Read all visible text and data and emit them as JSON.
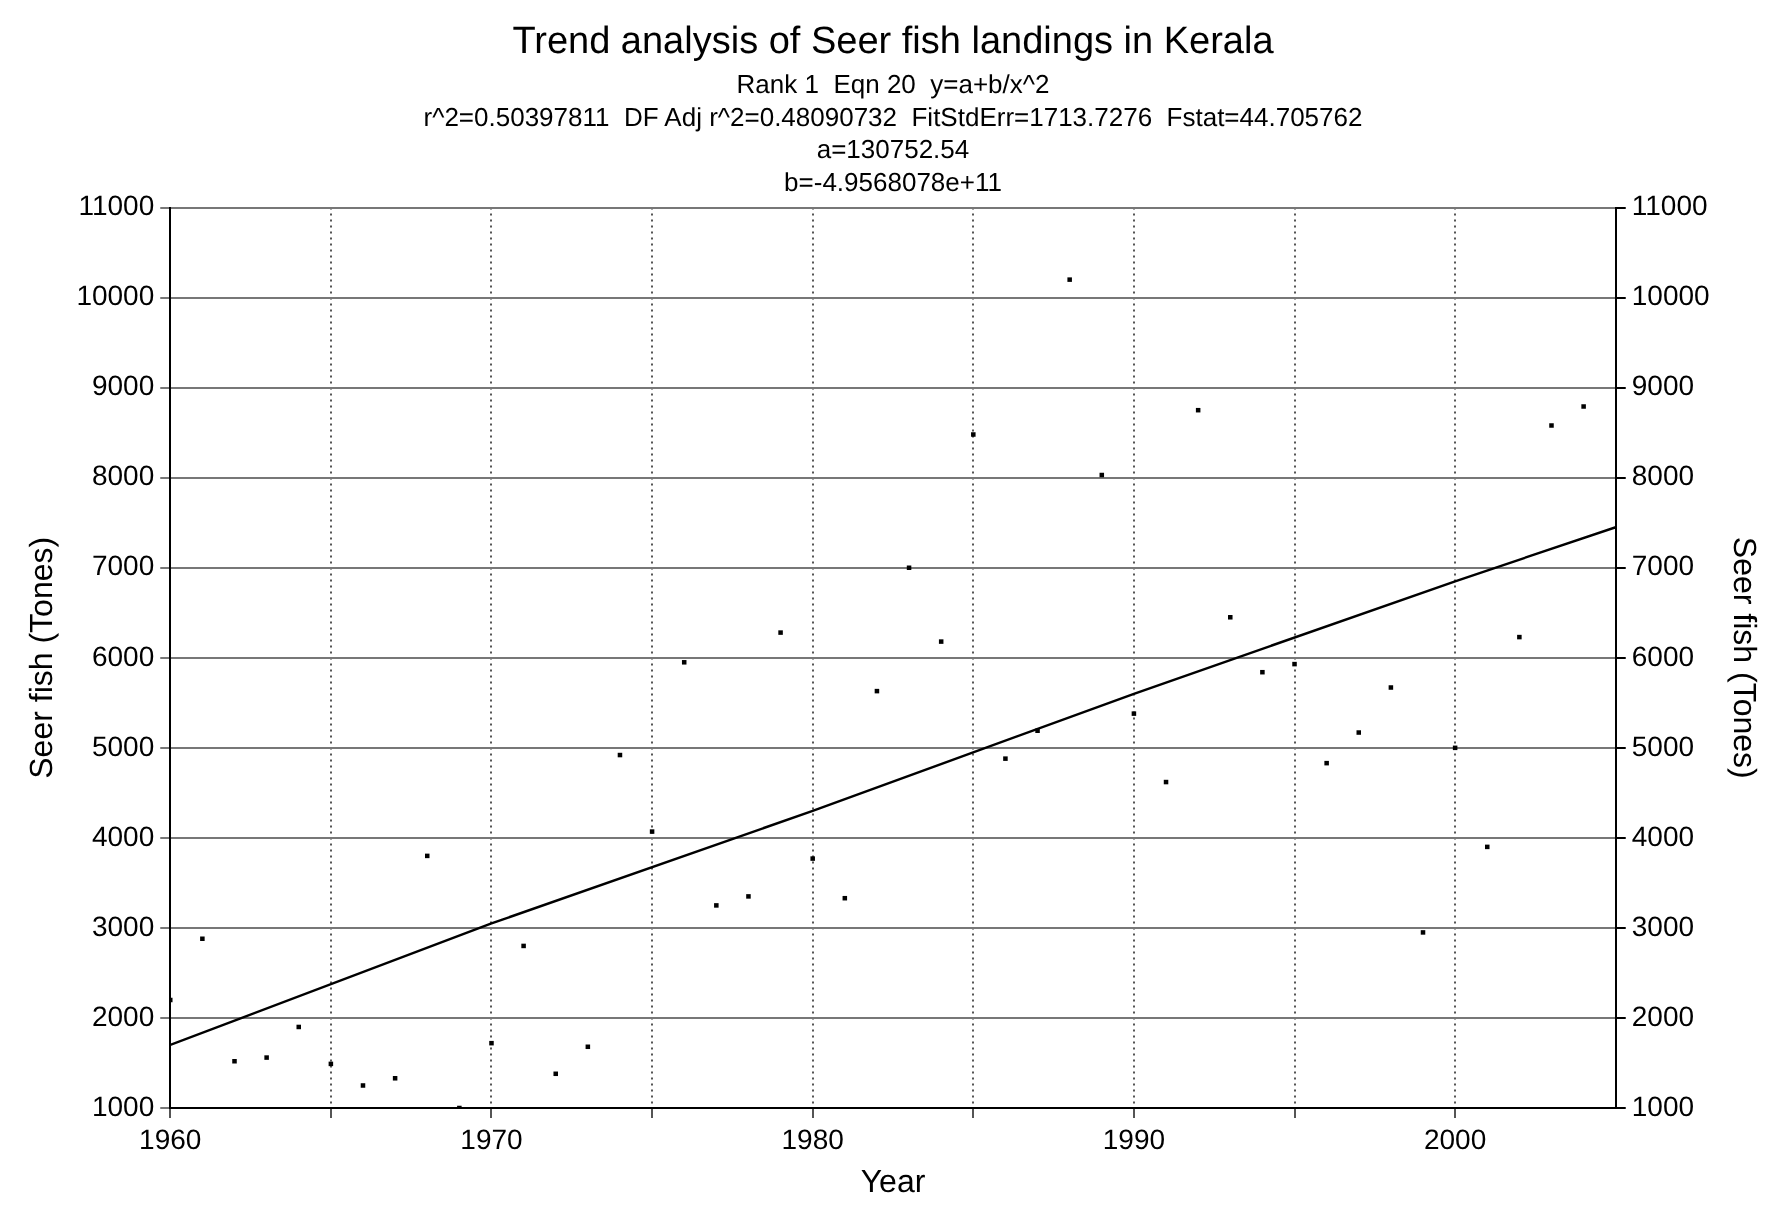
{
  "chart_data": {
    "type": "scatter",
    "title": "Trend analysis of Seer fish landings in Kerala",
    "subtitle": "Rank 1  Eqn 20  y=a+b/x^2",
    "annotations": [
      "r^2=0.50397811  DF Adj r^2=0.48090732  FitStdErr=1713.7276  Fstat=44.705762",
      "a=130752.54",
      "b=-4.9568078e+11"
    ],
    "xlabel": "Year",
    "ylabel": "Seer fish (Tones)",
    "y2label": "Seer fish (Tones)",
    "x": [
      1960,
      1961,
      1962,
      1963,
      1964,
      1965,
      1966,
      1967,
      1968,
      1969,
      1970,
      1971,
      1972,
      1973,
      1974,
      1975,
      1976,
      1977,
      1978,
      1979,
      1980,
      1981,
      1982,
      1983,
      1984,
      1985,
      1986,
      1987,
      1988,
      1989,
      1990,
      1991,
      1992,
      1993,
      1994,
      1995,
      1996,
      1997,
      1998,
      1999,
      2000,
      2001,
      2002,
      2003,
      2004
    ],
    "series": [
      {
        "color": "#000000",
        "marker": "square",
        "values": [
          2200,
          2880,
          1520,
          1560,
          1900,
          1490,
          1250,
          1330,
          3800,
          1000,
          1720,
          2800,
          1380,
          1680,
          4920,
          4070,
          5950,
          3250,
          3350,
          6280,
          3770,
          3330,
          5630,
          7000,
          6180,
          8480,
          4880,
          5190,
          10200,
          8030,
          5380,
          4620,
          8750,
          6450,
          5840,
          5930,
          4830,
          5170,
          5670,
          2950,
          5000,
          3900,
          6230,
          8580,
          8790
        ]
      },
      {
        "type": "line",
        "color": "#000000",
        "marker": "none",
        "x": [
          1960,
          1970,
          1980,
          1990,
          2000,
          2005
        ],
        "values": [
          1700,
          3050,
          4300,
          5600,
          6850,
          7450
        ]
      }
    ],
    "xlim": [
      1960,
      2005
    ],
    "xticks": [
      1960,
      {
        "value": 1965,
        "label": null
      },
      1970,
      {
        "value": 1975,
        "label": null
      },
      1980,
      {
        "value": 1985,
        "label": null
      },
      1990,
      {
        "value": 1995,
        "label": null
      },
      2000
    ],
    "ylim": [
      1000,
      11000
    ],
    "yticks": [
      1000,
      2000,
      3000,
      4000,
      5000,
      6000,
      7000,
      8000,
      9000,
      10000,
      11000
    ],
    "y2lim": [
      1000,
      11000
    ],
    "y2ticks": [
      1000,
      2000,
      3000,
      4000,
      5000,
      6000,
      7000,
      8000,
      9000,
      10000,
      11000
    ],
    "grid": true,
    "legend": false
  }
}
